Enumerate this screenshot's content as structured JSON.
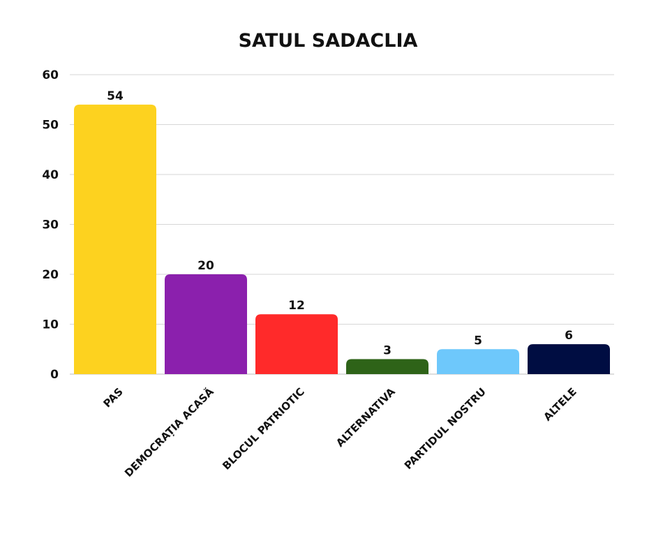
{
  "chart_data": {
    "type": "bar",
    "title": "SATUL SADACLIA",
    "xlabel": "",
    "ylabel": "",
    "categories": [
      "PAS",
      "DEMOCRAȚIA ACASĂ",
      "BLOCUL PATRIOTIC",
      "ALTERNATIVA",
      "PARTIDUL NOSTRU",
      "ALTELE"
    ],
    "values": [
      54,
      20,
      12,
      3,
      5,
      6
    ],
    "data_labels": [
      "54",
      "20",
      "12",
      "3",
      "5",
      "6"
    ],
    "colors": [
      "#FDD21F",
      "#8B20AD",
      "#FF2A2A",
      "#2E6318",
      "#6EC8FB",
      "#000D42"
    ],
    "ylim": [
      0,
      60
    ],
    "yticks": [
      "0",
      "10",
      "20",
      "30",
      "40",
      "50",
      "60"
    ],
    "grid": true,
    "legend": "none"
  }
}
